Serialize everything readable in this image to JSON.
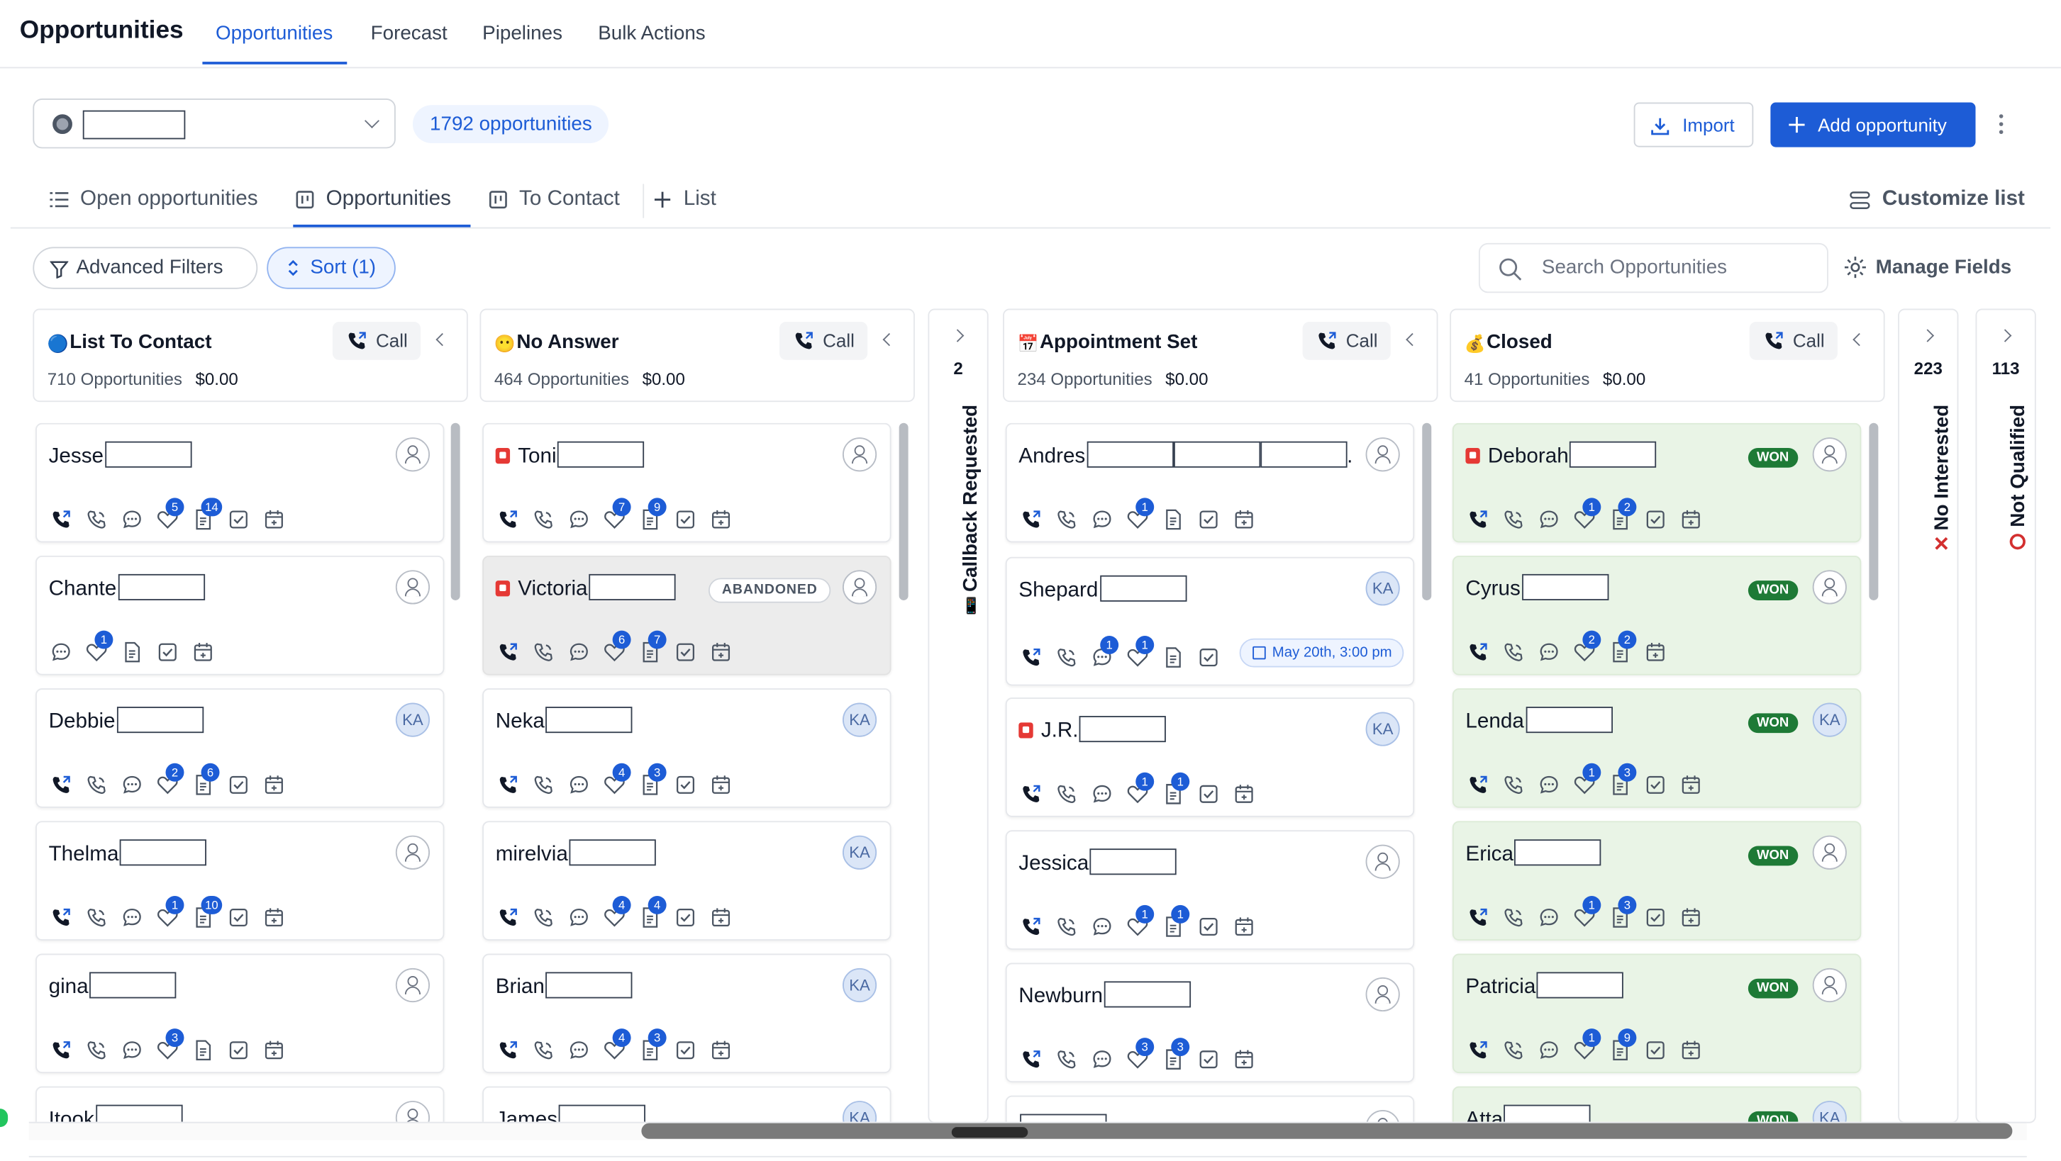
{
  "header": {
    "title": "Opportunities",
    "tabs": [
      "Opportunities",
      "Forecast",
      "Pipelines",
      "Bulk Actions"
    ]
  },
  "toolbar": {
    "count_label": "1792 opportunities",
    "import_label": "Import",
    "add_label": "Add opportunity"
  },
  "view_tabs": [
    "Open opportunities",
    "Opportunities",
    "To Contact",
    "List"
  ],
  "customize_label": "Customize list",
  "filters": {
    "advanced_label": "Advanced Filters",
    "sort_label": "Sort (1)",
    "search_placeholder": "Search Opportunities",
    "manage_fields_label": "Manage Fields"
  },
  "call_label": "Call",
  "columns": [
    {
      "title": "List To Contact",
      "emoji": "🔵",
      "count": "710 Opportunities",
      "amount": "$0.00",
      "cards": [
        {
          "name": "Jesse",
          "avatar": "assign",
          "icons": [
            [
              "phone",
              ""
            ],
            [
              "call-out",
              ""
            ],
            [
              "chat",
              ""
            ],
            [
              "tag",
              "5"
            ],
            [
              "note",
              "14"
            ],
            [
              "task",
              ""
            ],
            [
              "cal",
              ""
            ]
          ]
        },
        {
          "name": "Chante",
          "avatar": "assign",
          "icons": [
            [
              "chat",
              ""
            ],
            [
              "tag",
              "1"
            ],
            [
              "note",
              ""
            ],
            [
              "task",
              ""
            ],
            [
              "cal",
              ""
            ]
          ]
        },
        {
          "name": "Debbie",
          "avatar": "KA",
          "icons": [
            [
              "phone",
              ""
            ],
            [
              "call-out",
              ""
            ],
            [
              "chat",
              ""
            ],
            [
              "tag",
              "2"
            ],
            [
              "note",
              "6"
            ],
            [
              "task",
              ""
            ],
            [
              "cal",
              ""
            ]
          ]
        },
        {
          "name": "Thelma",
          "avatar": "assign",
          "icons": [
            [
              "phone",
              ""
            ],
            [
              "call-out",
              ""
            ],
            [
              "chat",
              ""
            ],
            [
              "tag",
              "1"
            ],
            [
              "note",
              "10"
            ],
            [
              "task",
              ""
            ],
            [
              "cal",
              ""
            ]
          ]
        },
        {
          "name": "gina",
          "avatar": "assign",
          "icons": [
            [
              "phone",
              ""
            ],
            [
              "call-out",
              ""
            ],
            [
              "chat",
              ""
            ],
            [
              "tag",
              "3"
            ],
            [
              "note",
              ""
            ],
            [
              "task",
              ""
            ],
            [
              "cal",
              ""
            ]
          ]
        },
        {
          "name": "Itook",
          "avatar": "assign",
          "icons": []
        }
      ]
    },
    {
      "title": "No Answer",
      "emoji": "😶",
      "count": "464 Opportunities",
      "amount": "$0.00",
      "cards": [
        {
          "name": "Toni",
          "flag": true,
          "avatar": "assign",
          "icons": [
            [
              "phone",
              ""
            ],
            [
              "call-out",
              ""
            ],
            [
              "chat",
              ""
            ],
            [
              "tag",
              "7"
            ],
            [
              "note",
              "9"
            ],
            [
              "task",
              ""
            ],
            [
              "cal",
              ""
            ]
          ]
        },
        {
          "name": "Victoria",
          "flag": true,
          "avatar": "assign",
          "badge": "ABANDONED",
          "style": "grey",
          "icons": [
            [
              "phone",
              ""
            ],
            [
              "call-out",
              ""
            ],
            [
              "chat",
              ""
            ],
            [
              "tag",
              "6"
            ],
            [
              "note",
              "7"
            ],
            [
              "task",
              ""
            ],
            [
              "cal",
              ""
            ]
          ]
        },
        {
          "name": "Neka",
          "avatar": "KA",
          "icons": [
            [
              "phone",
              ""
            ],
            [
              "call-out",
              ""
            ],
            [
              "chat",
              ""
            ],
            [
              "tag",
              "4"
            ],
            [
              "note",
              "3"
            ],
            [
              "task",
              ""
            ],
            [
              "cal",
              ""
            ]
          ]
        },
        {
          "name": "mirelvia",
          "avatar": "KA",
          "icons": [
            [
              "phone",
              ""
            ],
            [
              "call-out",
              ""
            ],
            [
              "chat",
              ""
            ],
            [
              "tag",
              "4"
            ],
            [
              "note",
              "4"
            ],
            [
              "task",
              ""
            ],
            [
              "cal",
              ""
            ]
          ]
        },
        {
          "name": "Brian",
          "avatar": "KA",
          "icons": [
            [
              "phone",
              ""
            ],
            [
              "call-out",
              ""
            ],
            [
              "chat",
              ""
            ],
            [
              "tag",
              "4"
            ],
            [
              "note",
              "3"
            ],
            [
              "task",
              ""
            ],
            [
              "cal",
              ""
            ]
          ]
        },
        {
          "name": "James",
          "avatar": "KA",
          "icons": []
        }
      ]
    },
    {
      "title": "Appointment Set",
      "emoji": "📅",
      "count": "234 Opportunities",
      "amount": "$0.00",
      "cards": [
        {
          "name": "Andres",
          "avatar": "assign",
          "multi": true,
          "icons": [
            [
              "phone",
              ""
            ],
            [
              "call-out",
              ""
            ],
            [
              "chat",
              ""
            ],
            [
              "tag",
              "1"
            ],
            [
              "note",
              ""
            ],
            [
              "task",
              ""
            ],
            [
              "cal",
              ""
            ]
          ]
        },
        {
          "name": "Shepard",
          "avatar": "KA",
          "appt": "May 20th, 3:00 pm",
          "icons": [
            [
              "phone",
              ""
            ],
            [
              "call-out",
              ""
            ],
            [
              "chat",
              "1"
            ],
            [
              "tag",
              "1"
            ],
            [
              "note",
              ""
            ],
            [
              "task",
              ""
            ]
          ]
        },
        {
          "name": "J.R.",
          "flag": true,
          "avatar": "KA",
          "icons": [
            [
              "phone",
              ""
            ],
            [
              "call-out",
              ""
            ],
            [
              "chat",
              ""
            ],
            [
              "tag",
              "1"
            ],
            [
              "note",
              "1"
            ],
            [
              "task",
              ""
            ],
            [
              "cal",
              ""
            ]
          ]
        },
        {
          "name": "Jessica",
          "avatar": "assign",
          "icons": [
            [
              "phone",
              ""
            ],
            [
              "call-out",
              ""
            ],
            [
              "chat",
              ""
            ],
            [
              "tag",
              "1"
            ],
            [
              "note",
              "1"
            ],
            [
              "task",
              ""
            ],
            [
              "cal",
              ""
            ]
          ]
        },
        {
          "name": "Newburn",
          "avatar": "assign",
          "icons": [
            [
              "phone",
              ""
            ],
            [
              "call-out",
              ""
            ],
            [
              "chat",
              ""
            ],
            [
              "tag",
              "3"
            ],
            [
              "note",
              "3"
            ],
            [
              "task",
              ""
            ],
            [
              "cal",
              ""
            ]
          ]
        },
        {
          "name": "",
          "avatar": "assign",
          "icons": []
        }
      ]
    },
    {
      "title": "Closed",
      "emoji": "💰",
      "count": "41 Opportunities",
      "amount": "$0.00",
      "cards": [
        {
          "name": "Deborah",
          "flag": true,
          "avatar": "assign",
          "won": "WON",
          "icons": [
            [
              "phone",
              ""
            ],
            [
              "call-out",
              ""
            ],
            [
              "chat",
              ""
            ],
            [
              "tag",
              "1"
            ],
            [
              "note",
              "2"
            ],
            [
              "task",
              ""
            ],
            [
              "cal",
              ""
            ]
          ]
        },
        {
          "name": "Cyrus",
          "avatar": "assign",
          "won": "WON",
          "icons": [
            [
              "phone",
              ""
            ],
            [
              "call-out",
              ""
            ],
            [
              "chat",
              ""
            ],
            [
              "tag",
              "2"
            ],
            [
              "note",
              "2"
            ],
            [
              "cal",
              ""
            ]
          ]
        },
        {
          "name": "Lenda",
          "avatar": "KA",
          "won": "WON",
          "icons": [
            [
              "phone",
              ""
            ],
            [
              "call-out",
              ""
            ],
            [
              "chat",
              ""
            ],
            [
              "tag",
              "1"
            ],
            [
              "note",
              "3"
            ],
            [
              "task",
              ""
            ],
            [
              "cal",
              ""
            ]
          ]
        },
        {
          "name": "Erica",
          "avatar": "assign",
          "won": "WON",
          "icons": [
            [
              "phone",
              ""
            ],
            [
              "call-out",
              ""
            ],
            [
              "chat",
              ""
            ],
            [
              "tag",
              "1"
            ],
            [
              "note",
              "3"
            ],
            [
              "task",
              ""
            ],
            [
              "cal",
              ""
            ]
          ]
        },
        {
          "name": "Patricia",
          "avatar": "assign",
          "won": "WON",
          "icons": [
            [
              "phone",
              ""
            ],
            [
              "call-out",
              ""
            ],
            [
              "chat",
              ""
            ],
            [
              "tag",
              "1"
            ],
            [
              "note",
              "9"
            ],
            [
              "task",
              ""
            ],
            [
              "cal",
              ""
            ]
          ]
        },
        {
          "name": "Atta",
          "avatar": "KA",
          "won": "WON",
          "icons": []
        }
      ]
    }
  ],
  "collapsed_columns": [
    {
      "label": "Callback Requested",
      "count": "2",
      "mark": "phone"
    },
    {
      "label": "No Interested",
      "count": "223",
      "mark": "x"
    },
    {
      "label": "Not Qualified",
      "count": "113",
      "mark": "o"
    }
  ]
}
